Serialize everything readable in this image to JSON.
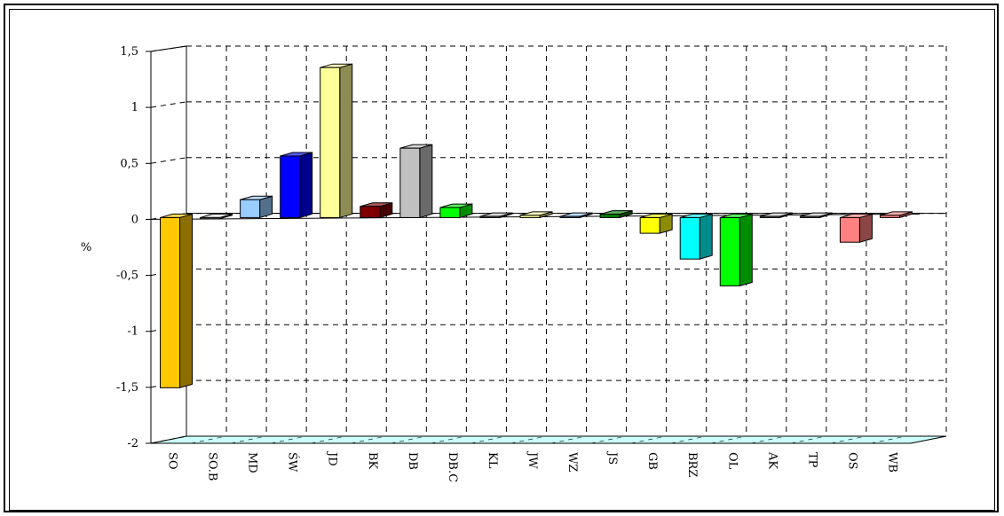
{
  "chart_data": {
    "type": "bar",
    "title": "",
    "xlabel": "",
    "ylabel": "%",
    "ylim": [
      -2,
      1.5
    ],
    "yticks": [
      "1,5",
      "1",
      "0,5",
      "0",
      "-0,5",
      "-1",
      "-1,5",
      "-2"
    ],
    "grid": true,
    "categories": [
      "SO",
      "SO.B",
      "MD",
      "ŚW",
      "JD",
      "BK",
      "DB",
      "DB.C",
      "KL",
      "JW",
      "WZ",
      "JS",
      "GB",
      "BRZ",
      "OL",
      "AK",
      "TP",
      "OS",
      "WB"
    ],
    "values": [
      -1.52,
      -0.01,
      0.16,
      0.55,
      1.34,
      0.1,
      0.62,
      0.09,
      0.01,
      0.02,
      0.01,
      0.03,
      -0.14,
      -0.37,
      -0.61,
      0.01,
      0.01,
      -0.22,
      0.02
    ],
    "colors": [
      "#FFC800",
      "#E0E0E0",
      "#99CCFF",
      "#0000FF",
      "#FFFF99",
      "#800000",
      "#C0C0C0",
      "#00FF00",
      "#C0C0C0",
      "#FFFF99",
      "#99CCFF",
      "#008000",
      "#FFFF00",
      "#00FFFF",
      "#00FF00",
      "#C0C0C0",
      "#C0C0C0",
      "#FF8080",
      "#FF8080"
    ]
  }
}
